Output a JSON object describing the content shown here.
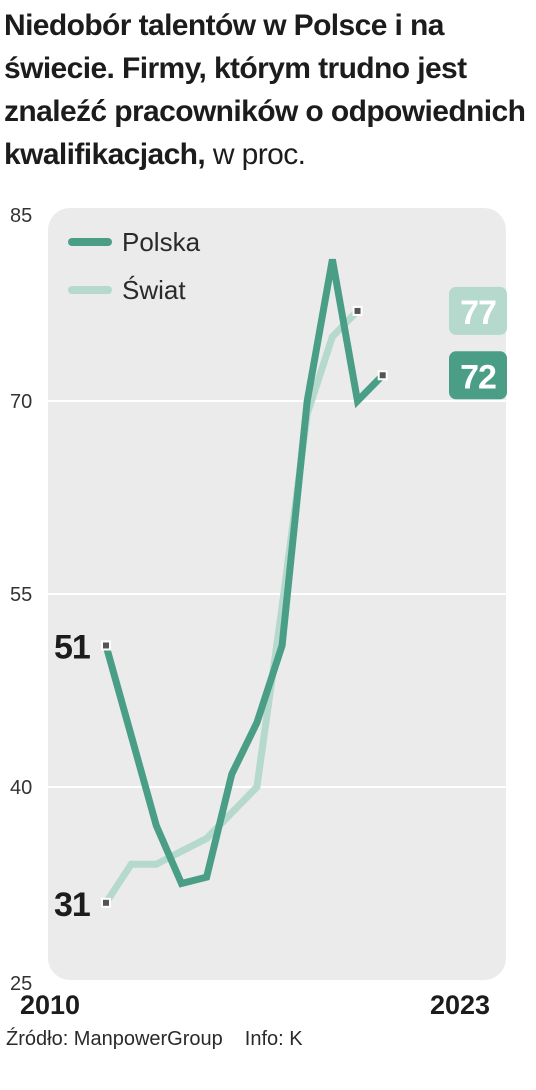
{
  "header": {
    "title_bold": "Niedobór talentów w Polsce i na świecie. Firmy, którym trudno jest znaleźć pracowników o odpowiednich kwalifikacjach,",
    "title_unit": " w proc."
  },
  "footer": {
    "source": "Źródło: ManpowerGroup",
    "info": "Info: K"
  },
  "colors": {
    "polska": "#4a9e86",
    "swiat": "#b5d9cd",
    "panel": "#ebebeb",
    "grid": "#ffffff"
  },
  "chart_data": {
    "type": "line",
    "x": [
      2010,
      2011,
      2012,
      2013,
      2014,
      2015,
      2016,
      2017,
      2018,
      2019,
      2020,
      2021,
      2022,
      2023
    ],
    "x_tick_labels": [
      "2010",
      "2023"
    ],
    "ylim": [
      25,
      85
    ],
    "y_ticks": [
      25,
      40,
      55,
      70,
      85
    ],
    "grid": true,
    "legend_position": "top-left",
    "series": [
      {
        "name": "Polska",
        "values": [
          51,
          44,
          37,
          32.5,
          33,
          41,
          45,
          51,
          70,
          81,
          70,
          72
        ],
        "x_values": [
          2010,
          2011,
          2012,
          2013,
          2014,
          2015,
          2016,
          2017,
          2018,
          2019,
          2020,
          2021
        ],
        "end_label": "72",
        "start_label": "51"
      },
      {
        "name": "Świat",
        "values": [
          31,
          34,
          34,
          35,
          36,
          38,
          40,
          54,
          69,
          75,
          77
        ],
        "x_values": [
          2010,
          2011,
          2012,
          2013,
          2014,
          2015,
          2016,
          2017,
          2018,
          2019,
          2020
        ],
        "end_label": "77",
        "start_label": "31"
      }
    ]
  }
}
